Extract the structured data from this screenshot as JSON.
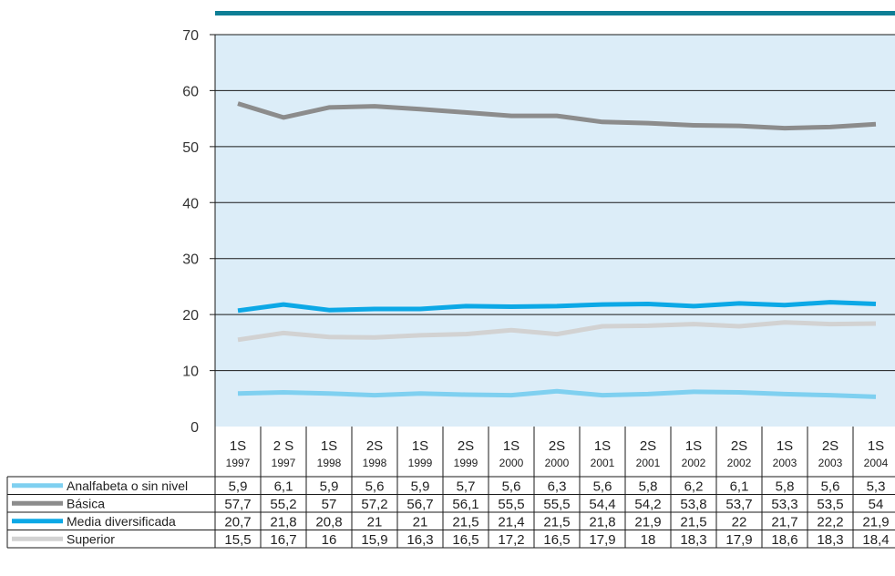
{
  "chart_data": {
    "type": "line",
    "title": "",
    "xlabel": "",
    "ylabel": "",
    "ylim": [
      0,
      70
    ],
    "yticks": [
      0,
      10,
      20,
      30,
      40,
      50,
      60,
      70
    ],
    "grid": true,
    "legend_placement": "table-left",
    "colors": {
      "plot_bg": "#dcedf8",
      "top_rule": "#0e7e95",
      "grid": "#1a1a1a"
    },
    "categories": [
      {
        "top": "1S",
        "bottom": "1997"
      },
      {
        "top": "2 S",
        "bottom": "1997"
      },
      {
        "top": "1S",
        "bottom": "1998"
      },
      {
        "top": "2S",
        "bottom": "1998"
      },
      {
        "top": "1S",
        "bottom": "1999"
      },
      {
        "top": "2S",
        "bottom": "1999"
      },
      {
        "top": "1S",
        "bottom": "2000"
      },
      {
        "top": "2S",
        "bottom": "2000"
      },
      {
        "top": "1S",
        "bottom": "2001"
      },
      {
        "top": "2S",
        "bottom": "2001"
      },
      {
        "top": "1S",
        "bottom": "2002"
      },
      {
        "top": "2S",
        "bottom": "2002"
      },
      {
        "top": "1S",
        "bottom": "2003"
      },
      {
        "top": "2S",
        "bottom": "2003"
      },
      {
        "top": "1S",
        "bottom": "2004"
      }
    ],
    "series": [
      {
        "name": "Analfabeta o sin nivel",
        "color": "#7fd0f0",
        "values": [
          5.9,
          6.1,
          5.9,
          5.6,
          5.9,
          5.7,
          5.6,
          6.3,
          5.6,
          5.8,
          6.2,
          6.1,
          5.8,
          5.6,
          5.3
        ],
        "labels": [
          "5,9",
          "6,1",
          "5,9",
          "5,6",
          "5,9",
          "5,7",
          "5,6",
          "6,3",
          "5,6",
          "5,8",
          "6,2",
          "6,1",
          "5,8",
          "5,6",
          "5,3"
        ]
      },
      {
        "name": "Básica",
        "color": "#8c8c8c",
        "values": [
          57.7,
          55.2,
          57,
          57.2,
          56.7,
          56.1,
          55.5,
          55.5,
          54.4,
          54.2,
          53.8,
          53.7,
          53.3,
          53.5,
          54
        ],
        "labels": [
          "57,7",
          "55,2",
          "57",
          "57,2",
          "56,7",
          "56,1",
          "55,5",
          "55,5",
          "54,4",
          "54,2",
          "53,8",
          "53,7",
          "53,3",
          "53,5",
          "54"
        ]
      },
      {
        "name": "Media diversificada",
        "color": "#0ca8e6",
        "values": [
          20.7,
          21.8,
          20.8,
          21,
          21,
          21.5,
          21.4,
          21.5,
          21.8,
          21.9,
          21.5,
          22,
          21.7,
          22.2,
          21.9
        ],
        "labels": [
          "20,7",
          "21,8",
          "20,8",
          "21",
          "21",
          "21,5",
          "21,4",
          "21,5",
          "21,8",
          "21,9",
          "21,5",
          "22",
          "21,7",
          "22,2",
          "21,9"
        ]
      },
      {
        "name": "Superior",
        "color": "#d2d2d2",
        "values": [
          15.5,
          16.7,
          16,
          15.9,
          16.3,
          16.5,
          17.2,
          16.5,
          17.9,
          18,
          18.3,
          17.9,
          18.6,
          18.3,
          18.4
        ],
        "labels": [
          "15,5",
          "16,7",
          "16",
          "15,9",
          "16,3",
          "16,5",
          "17,2",
          "16,5",
          "17,9",
          "18",
          "18,3",
          "17,9",
          "18,6",
          "18,3",
          "18,4"
        ]
      }
    ]
  }
}
